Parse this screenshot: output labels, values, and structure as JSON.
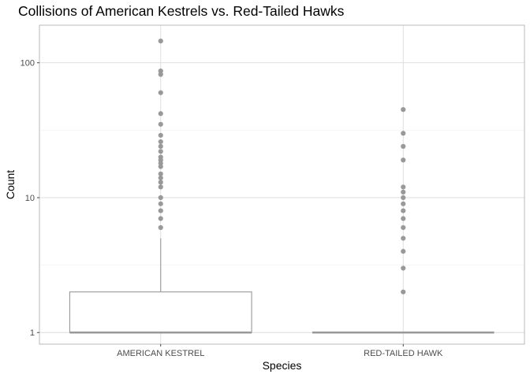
{
  "chart_data": {
    "type": "boxplot",
    "title": "Collisions of American Kestrels vs. Red-Tailed Hawks",
    "xlabel": "Species",
    "ylabel": "Count",
    "yscale": "log10",
    "ylim": [
      0.82,
      190
    ],
    "yticks": [
      1,
      10,
      100
    ],
    "ytick_labels": [
      "1",
      "10",
      "100"
    ],
    "grid": true,
    "categories": [
      "AMERICAN KESTREL",
      "RED-TAILED HAWK"
    ],
    "boxes": [
      {
        "category": "AMERICAN KESTREL",
        "min": 1,
        "q1": 1,
        "median": 1,
        "q3": 2,
        "max": 5,
        "outliers": [
          6,
          7,
          8,
          9,
          10,
          12,
          13,
          14,
          15,
          17,
          18,
          19,
          20,
          22,
          24,
          26,
          29,
          35,
          42,
          60,
          82,
          87,
          145
        ]
      },
      {
        "category": "RED-TAILED HAWK",
        "min": 1,
        "q1": 1,
        "median": 1,
        "q3": 1,
        "max": 1,
        "outliers": [
          2,
          3,
          4,
          5,
          6,
          7,
          8,
          9,
          10,
          11,
          12,
          19,
          24,
          30,
          45
        ]
      }
    ],
    "colors": {
      "box": "#999999",
      "panel_border": "#b3b3b3",
      "grid_major": "#dcdcdc",
      "grid_minor": "#ececec"
    }
  }
}
